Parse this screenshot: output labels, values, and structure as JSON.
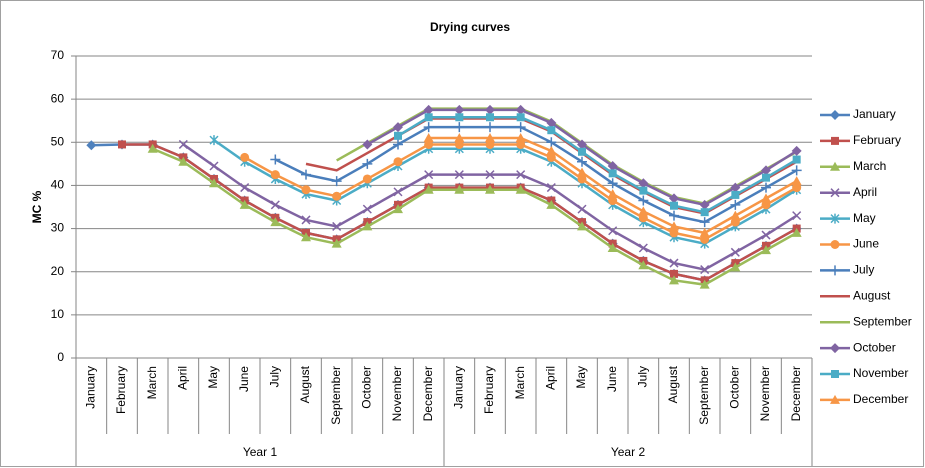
{
  "chart_data": {
    "type": "line",
    "title": "Drying curves",
    "ylabel": "MC %",
    "categories": [
      "January",
      "February",
      "March",
      "April",
      "May",
      "June",
      "July",
      "August",
      "September",
      "October",
      "November",
      "December",
      "January",
      "February",
      "March",
      "April",
      "May",
      "June",
      "July",
      "August",
      "September",
      "October",
      "November",
      "December"
    ],
    "category_groups": [
      "Year 1",
      "Year 2"
    ],
    "ylim": [
      0,
      70
    ],
    "yticks": [
      0,
      10,
      20,
      30,
      40,
      50,
      60,
      70
    ],
    "grid": true,
    "legend": "right",
    "series": [
      {
        "name": "January",
        "color": "#4f81bd",
        "marker": "diamond",
        "values": [
          49.3,
          49.5,
          49.5,
          46.5,
          41.5,
          36.5,
          32.5,
          29,
          27.5,
          31.5,
          35.5,
          39.5,
          39.5,
          39.5,
          39.5,
          36.5,
          31.5,
          26.5,
          22.5,
          19.5,
          18,
          22,
          26,
          30
        ]
      },
      {
        "name": "February",
        "color": "#c0504d",
        "marker": "square",
        "values": [
          null,
          49.5,
          49.5,
          46.5,
          41.5,
          36.5,
          32.5,
          29,
          27.5,
          31.5,
          35.5,
          39.5,
          39.5,
          39.5,
          39.5,
          36.5,
          31.5,
          26.5,
          22.5,
          19.5,
          18,
          22,
          26,
          30
        ]
      },
      {
        "name": "March",
        "color": "#9bbb59",
        "marker": "triangle",
        "values": [
          null,
          null,
          48.5,
          45.5,
          40.5,
          35.5,
          31.5,
          28,
          26.5,
          30.5,
          34.5,
          39,
          39,
          39,
          39,
          35.5,
          30.5,
          25.5,
          21.5,
          18,
          17,
          21,
          25,
          29
        ]
      },
      {
        "name": "April",
        "color": "#8064a2",
        "marker": "x",
        "values": [
          null,
          null,
          null,
          49.5,
          44.5,
          39.5,
          35.5,
          32,
          30.5,
          34.5,
          38.5,
          42.5,
          42.5,
          42.5,
          42.5,
          39.5,
          34.5,
          29.5,
          25.5,
          22,
          20.5,
          24.5,
          28.5,
          33
        ]
      },
      {
        "name": "May",
        "color": "#4bacc6",
        "marker": "star",
        "values": [
          null,
          null,
          null,
          null,
          50.5,
          45.5,
          41.5,
          38,
          36.5,
          40.5,
          44.5,
          48.5,
          48.5,
          48.5,
          48.5,
          45.5,
          40.5,
          35.5,
          31.5,
          28,
          26.5,
          30.5,
          34.5,
          39
        ]
      },
      {
        "name": "June",
        "color": "#f79646",
        "marker": "circle",
        "values": [
          null,
          null,
          null,
          null,
          null,
          46.5,
          42.5,
          39,
          37.5,
          41.5,
          45.5,
          49.5,
          49.5,
          49.5,
          49.5,
          46.5,
          41.5,
          36.5,
          32.5,
          29,
          27.5,
          31.5,
          35.5,
          39.5
        ]
      },
      {
        "name": "July",
        "color": "#4a7ebb",
        "marker": "plus",
        "values": [
          null,
          null,
          null,
          null,
          null,
          null,
          46,
          42.5,
          41,
          45,
          49.5,
          53.5,
          53.5,
          53.5,
          53.5,
          50,
          45.5,
          40.5,
          36.5,
          33,
          31.5,
          35.5,
          39.5,
          43.5
        ]
      },
      {
        "name": "August",
        "color": "#c0504d",
        "marker": "none",
        "values": [
          null,
          null,
          null,
          null,
          null,
          null,
          null,
          45,
          43.5,
          47.5,
          51.5,
          55.5,
          55.5,
          55.5,
          55.5,
          52.5,
          47.5,
          42.5,
          38.5,
          35,
          33.5,
          37.5,
          41.5,
          45.5
        ]
      },
      {
        "name": "September",
        "color": "#9bbb59",
        "marker": "none",
        "values": [
          null,
          null,
          null,
          null,
          null,
          null,
          null,
          null,
          45.8,
          49.8,
          53.8,
          57.8,
          57.8,
          57.8,
          57.8,
          54.8,
          49.8,
          44.8,
          40.8,
          37.3,
          35.8,
          39.8,
          43.8,
          47.8
        ]
      },
      {
        "name": "October",
        "color": "#8064a2",
        "marker": "diamond",
        "values": [
          null,
          null,
          null,
          null,
          null,
          null,
          null,
          null,
          null,
          49.5,
          53.5,
          57.5,
          57.5,
          57.5,
          57.5,
          54.5,
          49.5,
          44.5,
          40.5,
          37,
          35.5,
          39.5,
          43.5,
          48
        ]
      },
      {
        "name": "November",
        "color": "#4bacc6",
        "marker": "square",
        "values": [
          null,
          null,
          null,
          null,
          null,
          null,
          null,
          null,
          null,
          null,
          51.5,
          55.8,
          55.8,
          55.8,
          55.8,
          52.8,
          47.8,
          42.8,
          38.8,
          35.3,
          33.8,
          37.8,
          41.8,
          46
        ]
      },
      {
        "name": "December",
        "color": "#f79646",
        "marker": "triangle",
        "values": [
          null,
          null,
          null,
          null,
          null,
          null,
          null,
          null,
          null,
          null,
          null,
          51,
          51,
          51,
          51,
          48,
          43,
          38,
          34,
          30.5,
          29,
          33,
          37,
          41
        ]
      }
    ]
  }
}
